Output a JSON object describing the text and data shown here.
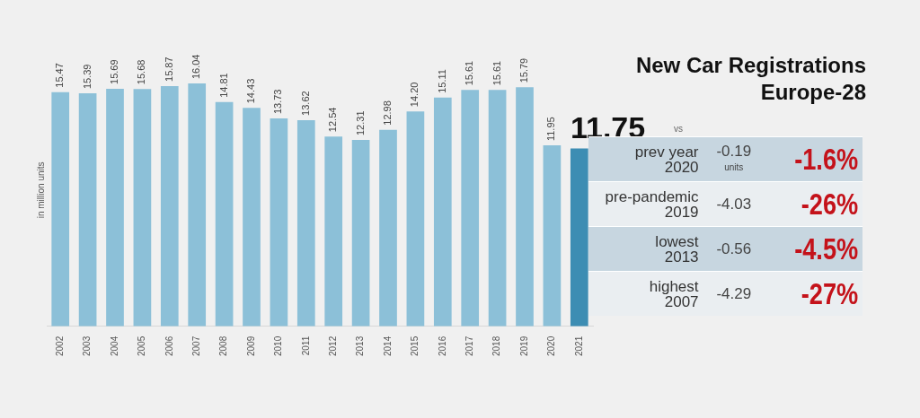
{
  "chart_data": {
    "type": "bar",
    "title": "New Car Registrations",
    "subtitle": "Europe-28",
    "ylabel": "in million units",
    "categories": [
      "2002",
      "2003",
      "2004",
      "2005",
      "2006",
      "2007",
      "2008",
      "2009",
      "2010",
      "2011",
      "2012",
      "2013",
      "2014",
      "2015",
      "2016",
      "2017",
      "2018",
      "2019",
      "2020",
      "2021"
    ],
    "values": [
      15.47,
      15.39,
      15.69,
      15.68,
      15.87,
      16.04,
      14.81,
      14.43,
      13.73,
      13.62,
      12.54,
      12.31,
      12.98,
      14.2,
      15.11,
      15.61,
      15.61,
      15.79,
      11.95,
      11.75
    ],
    "colors": [
      "#8cc0d8",
      "#8cc0d8",
      "#8cc0d8",
      "#8cc0d8",
      "#8cc0d8",
      "#8cc0d8",
      "#8cc0d8",
      "#8cc0d8",
      "#8cc0d8",
      "#8cc0d8",
      "#8cc0d8",
      "#8cc0d8",
      "#8cc0d8",
      "#8cc0d8",
      "#8cc0d8",
      "#8cc0d8",
      "#8cc0d8",
      "#8cc0d8",
      "#8cc0d8",
      "#3d8db3"
    ],
    "value_labels": [
      "15.47",
      "15.39",
      "15.69",
      "15.68",
      "15.87",
      "16.04",
      "14.81",
      "14.43",
      "13.73",
      "13.62",
      "12.54",
      "12.31",
      "12.98",
      "14.20",
      "15.11",
      "15.61",
      "15.61",
      "15.79",
      "11.95",
      "11.75"
    ],
    "grid": false,
    "legend": false,
    "annotations": [
      "vs",
      "prev year\n2020",
      "-0.19\nunits",
      "-1.6%",
      "pre-pandemic\n2019",
      "-4.03",
      "-26%",
      "lowest\n2013",
      "-0.56",
      "-4.5%",
      "highest\n2007",
      "-4.29",
      "-27%"
    ]
  }
}
